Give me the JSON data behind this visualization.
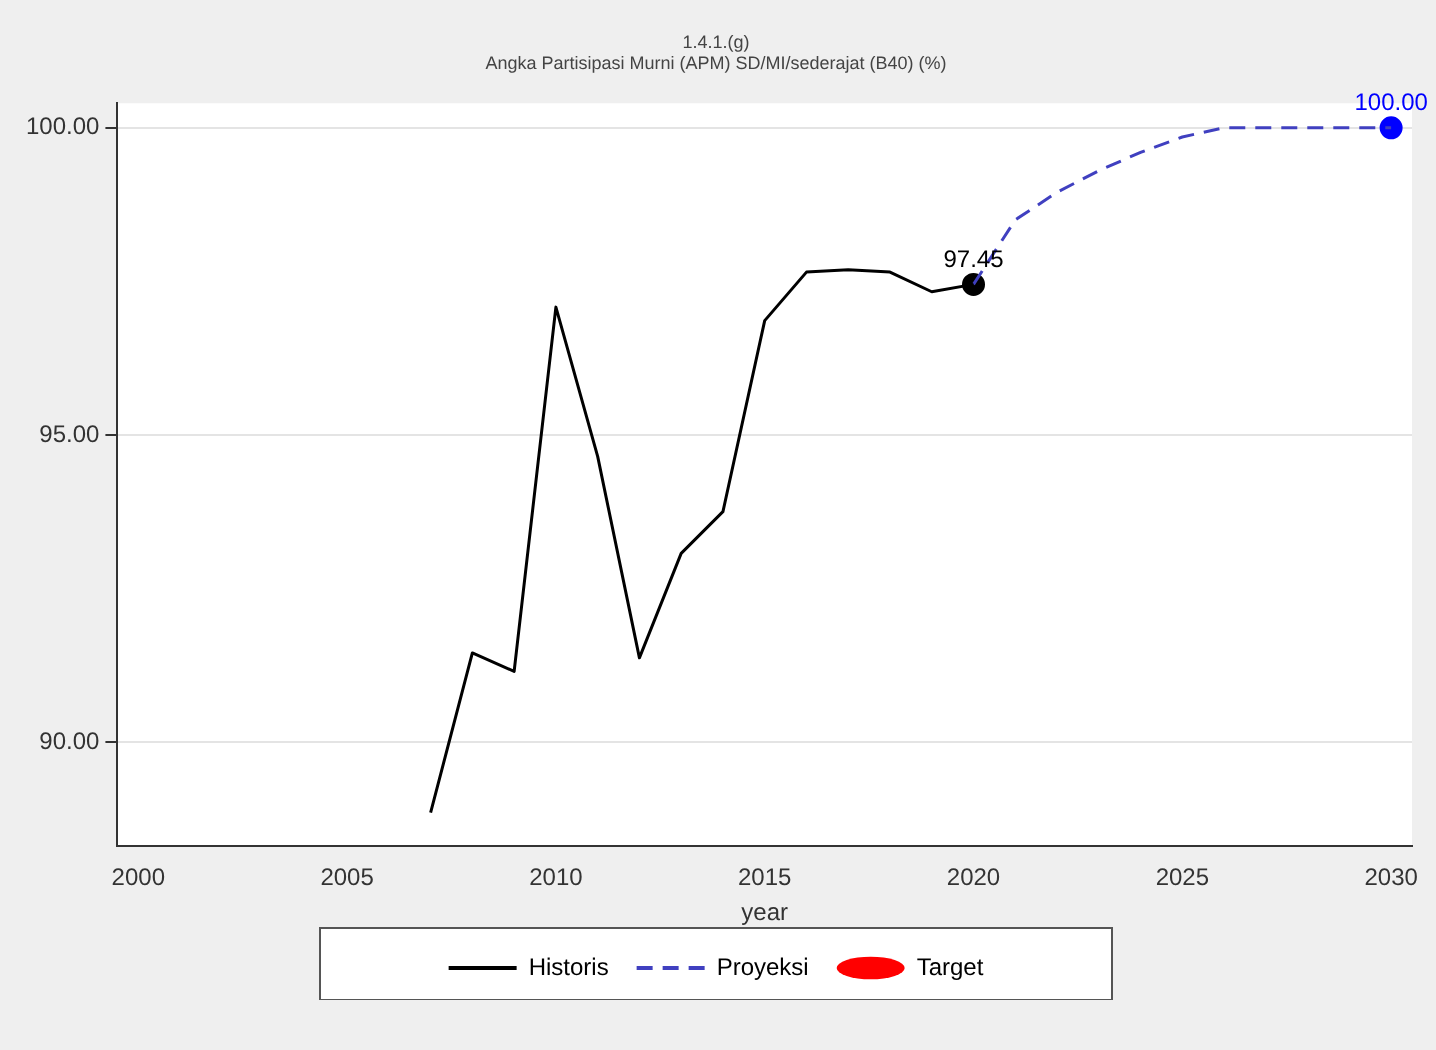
{
  "chart_data": {
    "type": "line",
    "title": "1.4.1.(g)",
    "subtitle": "Angka Partisipasi Murni (APM) SD/MI/sederajat (B40) (%)",
    "xlabel": "year",
    "xlim": [
      1999.5,
      2030.5
    ],
    "xticks": [
      2000,
      2005,
      2010,
      2015,
      2020,
      2025,
      2030
    ],
    "ylim": [
      88.3,
      100.4
    ],
    "yticks": [
      {
        "value": 90,
        "label": "90.00"
      },
      {
        "value": 95,
        "label": "95.00"
      },
      {
        "value": 100,
        "label": "100.00"
      }
    ],
    "grid": "y",
    "legend": "bottom",
    "series": [
      {
        "name": "Historis",
        "color": "#000000",
        "x": [
          2007,
          2008,
          2009,
          2010,
          2011,
          2012,
          2013,
          2014,
          2015,
          2016,
          2017,
          2018,
          2019,
          2020
        ],
        "values": [
          88.85,
          91.45,
          91.15,
          97.08,
          94.65,
          91.37,
          93.07,
          93.75,
          96.86,
          97.65,
          97.69,
          97.65,
          97.33,
          97.45
        ],
        "marker": "none",
        "line_style": "solid"
      },
      {
        "name": "Proyeksi",
        "color": "#4040c0",
        "x": [
          2020,
          2021,
          2022,
          2023,
          2024,
          2025,
          2026,
          2027,
          2028,
          2029,
          2030
        ],
        "values": [
          97.45,
          98.5,
          98.95,
          99.3,
          99.6,
          99.85,
          100,
          100,
          100,
          100,
          100
        ],
        "marker": "none",
        "line_style": "dashed"
      },
      {
        "name": "Target",
        "type": "scatter",
        "color": "#ff0000",
        "marker": "circle"
      },
      {
        "type": "scatter",
        "color": "#000000",
        "x": [
          2020
        ],
        "values": [
          97.45
        ],
        "value_labels": [
          "97.45"
        ],
        "marker": "circle"
      },
      {
        "type": "scatter",
        "color": "#0000ff",
        "x": [
          2030
        ],
        "values": [
          100
        ],
        "value_labels": [
          "100.00"
        ],
        "marker": "circle"
      }
    ]
  }
}
